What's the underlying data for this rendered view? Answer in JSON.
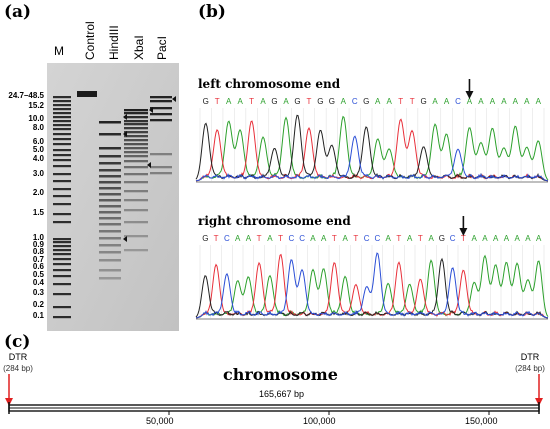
{
  "panel_a": {
    "label": "(a)",
    "lanes": [
      "M",
      "Control",
      "HindIII",
      "XbaI",
      "PacI"
    ],
    "ladder": [
      "24.7–48.5",
      "15.2",
      "10.0",
      "8.0",
      "6.0",
      "5.0",
      "4.0",
      "3.0",
      "2.0",
      "1.5",
      "1.0",
      "0.9",
      "0.8",
      "0.7",
      "0.6",
      "0.5",
      "0.4",
      "0.3",
      "0.2",
      "0.1"
    ]
  },
  "panel_b": {
    "label": "(b)",
    "left": {
      "title": "left chromosome end",
      "sequence": "GTAATAGAGTGGACGAATTGAACAAAAAAA"
    },
    "right": {
      "title": "right chromosome end",
      "sequence": "GTCAATATCCAATATCCATATAGCTAAAAAAA"
    },
    "base_colors": {
      "A": "#2ca02c",
      "T": "#e8303a",
      "G": "#222222",
      "C": "#2b4fd6"
    }
  },
  "panel_c": {
    "label": "(c)",
    "title": "chromosome",
    "length_text": "165,667 bp",
    "dtr_left": {
      "name": "DTR",
      "size": "(284 bp)"
    },
    "dtr_right": {
      "name": "DTR",
      "size": "(284 bp)"
    },
    "ticks": [
      "50,000",
      "100,000",
      "150,000"
    ],
    "arrow_color": "#e02020"
  }
}
